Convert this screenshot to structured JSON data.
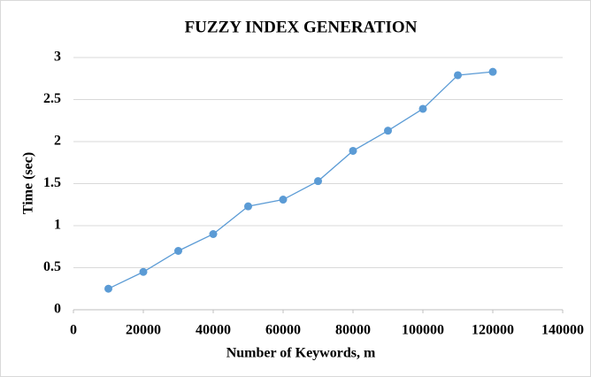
{
  "chart_data": {
    "type": "line",
    "title": "FUZZY INDEX GENERATION",
    "x_label": "Number of Keywords, m",
    "y_label": "Time (sec)",
    "x": [
      10000,
      20000,
      30000,
      40000,
      50000,
      60000,
      70000,
      80000,
      90000,
      100000,
      110000,
      120000
    ],
    "series": [
      {
        "name": "Fuzzy index generation",
        "color": "#5b9bd5",
        "values": [
          0.25,
          0.45,
          0.7,
          0.9,
          1.23,
          1.31,
          1.53,
          1.89,
          2.13,
          2.39,
          2.79,
          2.83
        ]
      }
    ],
    "xlim": [
      0,
      140000
    ],
    "xticks": [
      0,
      20000,
      40000,
      60000,
      80000,
      100000,
      120000,
      140000
    ],
    "ylim": [
      0,
      3
    ],
    "yticks": [
      0,
      0.5,
      1,
      1.5,
      2,
      2.5,
      3
    ],
    "grid": true,
    "legend": false
  }
}
